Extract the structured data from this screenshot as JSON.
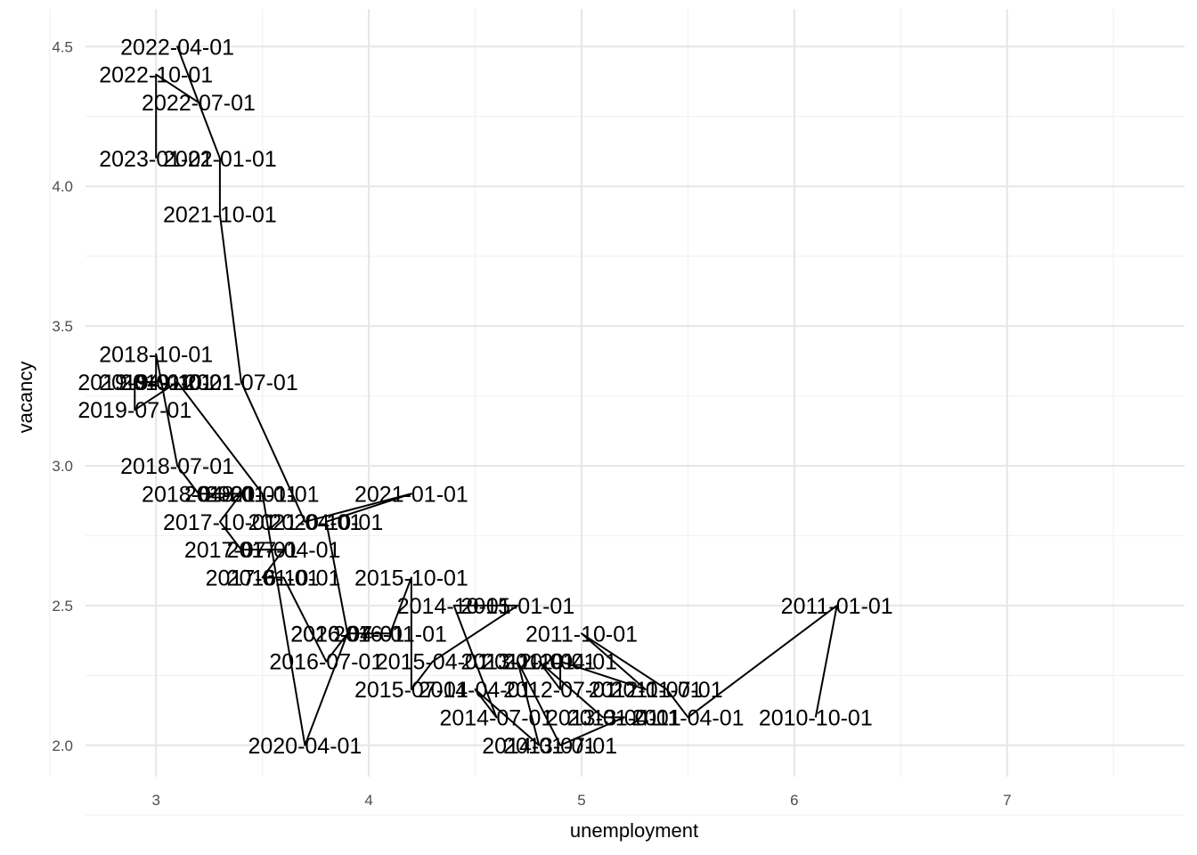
{
  "chart_data": {
    "type": "line",
    "connection": "path in time order",
    "xlabel": "unemployment",
    "ylabel": "vacancy",
    "xlim": [
      2.7,
      7.8
    ],
    "ylim": [
      1.85,
      4.6
    ],
    "x_ticks": [
      "3",
      "4",
      "5",
      "6",
      "7"
    ],
    "y_ticks": [
      "2.0",
      "2.5",
      "3.0",
      "3.5",
      "4.0",
      "4.5"
    ],
    "grid": true,
    "points": [
      {
        "date": "2010-10-01",
        "x": 6.1,
        "y": 2.1
      },
      {
        "date": "2011-01-01",
        "x": 6.2,
        "y": 2.5
      },
      {
        "date": "2011-04-01",
        "x": 5.5,
        "y": 2.1
      },
      {
        "date": "2011-07-01",
        "x": 5.4,
        "y": 2.2
      },
      {
        "date": "2011-10-01",
        "x": 5.0,
        "y": 2.4
      },
      {
        "date": "2012-01-01",
        "x": 5.3,
        "y": 2.2
      },
      {
        "date": "2012-04-01",
        "x": 4.9,
        "y": 2.3
      },
      {
        "date": "2012-07-01",
        "x": 4.9,
        "y": 2.2
      },
      {
        "date": "2012-10-01",
        "x": 4.8,
        "y": 2.3
      },
      {
        "date": "2013-01-01",
        "x": 5.1,
        "y": 2.1
      },
      {
        "date": "2013-04-01",
        "x": 5.2,
        "y": 2.1
      },
      {
        "date": "2013-07-01",
        "x": 4.9,
        "y": 2.0
      },
      {
        "date": "2013-10-01",
        "x": 4.7,
        "y": 2.3
      },
      {
        "date": "2014-01-01",
        "x": 4.8,
        "y": 2.0
      },
      {
        "date": "2014-04-01",
        "x": 4.5,
        "y": 2.2
      },
      {
        "date": "2014-07-01",
        "x": 4.6,
        "y": 2.1
      },
      {
        "date": "2014-10-01",
        "x": 4.4,
        "y": 2.5
      },
      {
        "date": "2015-01-01",
        "x": 4.7,
        "y": 2.5
      },
      {
        "date": "2015-04-01",
        "x": 4.3,
        "y": 2.3
      },
      {
        "date": "2015-07-01",
        "x": 4.2,
        "y": 2.2
      },
      {
        "date": "2015-10-01",
        "x": 4.2,
        "y": 2.6
      },
      {
        "date": "2016-01-01",
        "x": 4.1,
        "y": 2.4
      },
      {
        "date": "2016-04-01",
        "x": 3.9,
        "y": 2.4
      },
      {
        "date": "2016-07-01",
        "x": 3.8,
        "y": 2.3
      },
      {
        "date": "2016-10-01",
        "x": 3.6,
        "y": 2.6
      },
      {
        "date": "2017-01-01",
        "x": 3.5,
        "y": 2.6
      },
      {
        "date": "2017-04-01",
        "x": 3.6,
        "y": 2.7
      },
      {
        "date": "2017-07-01",
        "x": 3.4,
        "y": 2.7
      },
      {
        "date": "2017-10-01",
        "x": 3.3,
        "y": 2.8
      },
      {
        "date": "2018-01-01",
        "x": 3.4,
        "y": 2.9
      },
      {
        "date": "2018-04-01",
        "x": 3.2,
        "y": 2.9
      },
      {
        "date": "2018-07-01",
        "x": 3.1,
        "y": 3.0
      },
      {
        "date": "2018-10-01",
        "x": 3.0,
        "y": 3.4
      },
      {
        "date": "2019-01-01",
        "x": 3.0,
        "y": 3.3
      },
      {
        "date": "2019-04-01",
        "x": 2.9,
        "y": 3.3
      },
      {
        "date": "2019-07-01",
        "x": 2.9,
        "y": 3.2
      },
      {
        "date": "2019-10-01",
        "x": 3.1,
        "y": 3.3
      },
      {
        "date": "2020-01-01",
        "x": 3.5,
        "y": 2.9
      },
      {
        "date": "2020-04-01",
        "x": 3.7,
        "y": 2.0
      },
      {
        "date": "2020-07-01",
        "x": 3.9,
        "y": 2.4
      },
      {
        "date": "2020-10-01",
        "x": 3.8,
        "y": 2.8
      },
      {
        "date": "2021-01-01",
        "x": 4.2,
        "y": 2.9
      },
      {
        "date": "2021-04-01",
        "x": 3.7,
        "y": 2.8
      },
      {
        "date": "2021-07-01",
        "x": 3.4,
        "y": 3.3
      },
      {
        "date": "2021-10-01",
        "x": 3.3,
        "y": 3.9
      },
      {
        "date": "2022-01-01",
        "x": 3.3,
        "y": 4.1
      },
      {
        "date": "2022-04-01",
        "x": 3.1,
        "y": 4.5
      },
      {
        "date": "2022-07-01",
        "x": 3.2,
        "y": 4.3
      },
      {
        "date": "2022-10-01",
        "x": 3.0,
        "y": 4.4
      },
      {
        "date": "2023-01-01",
        "x": 3.0,
        "y": 4.1
      }
    ]
  }
}
